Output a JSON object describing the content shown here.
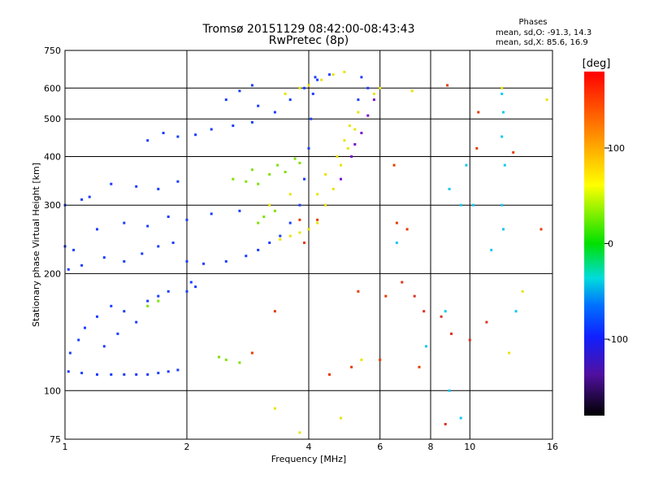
{
  "chart_data": {
    "type": "scatter",
    "title": "Tromsø 20151129 08:42:00-08:43:43",
    "subtitle": "RwPretec (8p)",
    "xlabel": "Frequency [MHz]",
    "ylabel": "Stationary phase Virtual Height [km]",
    "x_scale": "log",
    "y_scale": "log",
    "xlim": [
      1,
      16
    ],
    "ylim": [
      75,
      750
    ],
    "x_ticks": [
      1,
      2,
      4,
      6,
      8,
      10,
      16
    ],
    "x_tick_labels": [
      "1",
      "2",
      "4",
      "6",
      "8",
      "10",
      "16"
    ],
    "y_ticks": [
      75,
      100,
      200,
      300,
      400,
      500,
      600,
      750
    ],
    "y_tick_labels": [
      "75",
      "100",
      "200",
      "300",
      "400",
      "500",
      "600",
      "750"
    ],
    "grid": true,
    "phase_info": {
      "heading": "Phases",
      "line_o": "mean, sd,O: -91.3, 14.3",
      "line_x": "mean, sd,X: 85.6, 16.9"
    },
    "colorbar": {
      "title": "[deg]",
      "range": [
        -180,
        180
      ],
      "ticks": [
        100,
        0,
        -100
      ],
      "tick_labels": [
        "100",
        "0",
        "-100"
      ]
    },
    "series": [
      {
        "points": [
          [
            1.02,
            112
          ],
          [
            1.1,
            111
          ],
          [
            1.2,
            110
          ],
          [
            1.3,
            110
          ],
          [
            1.4,
            110
          ],
          [
            1.5,
            110
          ],
          [
            1.6,
            110
          ],
          [
            1.7,
            111
          ],
          [
            1.8,
            112
          ],
          [
            1.9,
            113
          ],
          [
            1.03,
            125
          ],
          [
            1.08,
            135
          ],
          [
            1.12,
            145
          ],
          [
            1.2,
            155
          ],
          [
            1.3,
            165
          ],
          [
            1.4,
            160
          ],
          [
            1.5,
            150
          ],
          [
            1.35,
            140
          ],
          [
            1.25,
            130
          ],
          [
            1.6,
            170
          ],
          [
            1.7,
            175
          ],
          [
            1.8,
            180
          ],
          [
            1.02,
            205
          ],
          [
            1.1,
            210
          ],
          [
            1.25,
            220
          ],
          [
            1.4,
            215
          ],
          [
            1.55,
            225
          ],
          [
            1.7,
            235
          ],
          [
            1.85,
            240
          ],
          [
            2.0,
            215
          ],
          [
            2.2,
            212
          ],
          [
            2.5,
            215
          ],
          [
            2.8,
            222
          ],
          [
            3.0,
            230
          ],
          [
            3.2,
            240
          ],
          [
            3.4,
            250
          ],
          [
            3.6,
            270
          ],
          [
            3.8,
            300
          ],
          [
            3.9,
            350
          ],
          [
            4.0,
            420
          ],
          [
            4.05,
            500
          ],
          [
            4.1,
            580
          ],
          [
            4.15,
            640
          ],
          [
            1.2,
            260
          ],
          [
            1.4,
            270
          ],
          [
            1.6,
            265
          ],
          [
            1.8,
            280
          ],
          [
            2.0,
            275
          ],
          [
            2.3,
            285
          ],
          [
            2.7,
            290
          ],
          [
            1.3,
            340
          ],
          [
            1.5,
            335
          ],
          [
            1.7,
            330
          ],
          [
            1.9,
            345
          ],
          [
            1.6,
            440
          ],
          [
            1.75,
            460
          ],
          [
            1.9,
            450
          ],
          [
            2.1,
            455
          ],
          [
            2.3,
            470
          ],
          [
            2.6,
            480
          ],
          [
            2.9,
            490
          ],
          [
            1.0,
            300
          ],
          [
            1.1,
            310
          ],
          [
            1.15,
            315
          ],
          [
            1.0,
            235
          ],
          [
            1.05,
            230
          ],
          [
            2.0,
            180
          ],
          [
            2.05,
            190
          ],
          [
            2.1,
            185
          ],
          [
            2.5,
            560
          ],
          [
            2.7,
            590
          ],
          [
            2.9,
            610
          ],
          [
            3.0,
            540
          ],
          [
            3.3,
            520
          ],
          [
            3.6,
            560
          ],
          [
            3.9,
            600
          ],
          [
            4.2,
            630
          ],
          [
            4.5,
            650
          ],
          [
            5.3,
            560
          ],
          [
            5.6,
            600
          ],
          [
            5.4,
            640
          ]
        ]
      },
      {
        "points": [
          [
            2.6,
            350
          ],
          [
            2.8,
            345
          ],
          [
            2.9,
            370
          ],
          [
            3.0,
            340
          ],
          [
            3.2,
            360
          ],
          [
            3.35,
            380
          ],
          [
            3.5,
            365
          ],
          [
            3.7,
            395
          ],
          [
            3.8,
            385
          ],
          [
            3.0,
            270
          ],
          [
            3.1,
            280
          ],
          [
            3.3,
            290
          ],
          [
            2.5,
            120
          ],
          [
            2.7,
            118
          ],
          [
            2.4,
            122
          ],
          [
            1.6,
            165
          ],
          [
            1.7,
            170
          ]
        ]
      },
      {
        "points": [
          [
            3.4,
            245
          ],
          [
            3.6,
            250
          ],
          [
            3.8,
            255
          ],
          [
            4.0,
            260
          ],
          [
            4.2,
            270
          ],
          [
            4.4,
            300
          ],
          [
            4.6,
            330
          ],
          [
            4.8,
            380
          ],
          [
            5.0,
            420
          ],
          [
            5.2,
            470
          ],
          [
            5.3,
            520
          ],
          [
            4.2,
            320
          ],
          [
            4.4,
            360
          ],
          [
            4.7,
            400
          ],
          [
            4.9,
            440
          ],
          [
            5.05,
            480
          ],
          [
            3.5,
            580
          ],
          [
            3.8,
            600
          ],
          [
            4.0,
            610
          ],
          [
            4.3,
            630
          ],
          [
            4.6,
            650
          ],
          [
            4.9,
            660
          ],
          [
            3.2,
            300
          ],
          [
            3.6,
            320
          ],
          [
            5.8,
            580
          ],
          [
            6.0,
            600
          ],
          [
            7.2,
            590
          ],
          [
            12.0,
            600
          ],
          [
            15.5,
            560
          ],
          [
            13.5,
            180
          ],
          [
            12.5,
            125
          ],
          [
            4.8,
            85
          ],
          [
            3.8,
            78
          ],
          [
            5.4,
            120
          ],
          [
            3.3,
            90
          ]
        ]
      },
      {
        "points": [
          [
            8.8,
            610
          ],
          [
            10.5,
            520
          ],
          [
            10.4,
            420
          ],
          [
            6.5,
            380
          ],
          [
            6.6,
            270
          ],
          [
            7.0,
            260
          ],
          [
            12.8,
            410
          ],
          [
            15.0,
            260
          ],
          [
            5.3,
            180
          ],
          [
            6.2,
            175
          ],
          [
            4.5,
            110
          ],
          [
            5.1,
            115
          ],
          [
            6.0,
            120
          ],
          [
            7.5,
            115
          ],
          [
            3.3,
            160
          ],
          [
            3.9,
            240
          ],
          [
            3.8,
            275
          ],
          [
            4.2,
            275
          ],
          [
            2.9,
            125
          ]
        ]
      },
      {
        "points": [
          [
            12.0,
            580
          ],
          [
            12.1,
            520
          ],
          [
            12.0,
            450
          ],
          [
            12.2,
            380
          ],
          [
            12.0,
            300
          ],
          [
            12.1,
            260
          ],
          [
            11.3,
            230
          ],
          [
            9.8,
            380
          ],
          [
            10.2,
            300
          ],
          [
            8.9,
            330
          ],
          [
            8.7,
            160
          ],
          [
            8.9,
            100
          ],
          [
            9.5,
            85
          ],
          [
            7.8,
            130
          ],
          [
            6.6,
            240
          ],
          [
            13.0,
            160
          ],
          [
            9.5,
            300
          ]
        ]
      },
      {
        "points": [
          [
            4.8,
            350
          ],
          [
            5.1,
            400
          ],
          [
            5.2,
            430
          ],
          [
            5.4,
            460
          ],
          [
            5.6,
            510
          ],
          [
            5.8,
            560
          ]
        ]
      },
      {
        "points": [
          [
            6.8,
            190
          ],
          [
            7.3,
            175
          ],
          [
            7.7,
            160
          ],
          [
            8.5,
            155
          ],
          [
            8.7,
            82
          ],
          [
            9.0,
            140
          ],
          [
            11.0,
            150
          ],
          [
            10.0,
            135
          ]
        ]
      }
    ]
  }
}
